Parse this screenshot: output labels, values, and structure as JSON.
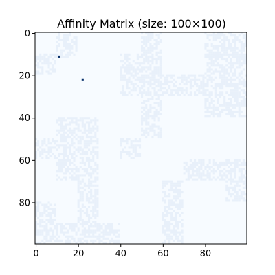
{
  "chart_data": {
    "type": "heatmap",
    "title": "Affinity Matrix (size: 100×100)",
    "xlabel": "",
    "ylabel": "",
    "rows": 100,
    "cols": 100,
    "xlim": [
      -0.5,
      99.5
    ],
    "ylim": [
      99.5,
      -0.5
    ],
    "x_ticks": [
      0,
      20,
      40,
      60,
      80
    ],
    "y_ticks": [
      0,
      20,
      40,
      60,
      80
    ],
    "colormap": "Blues",
    "value_range": [
      0,
      1
    ],
    "background_value": 0.0,
    "block_value": 0.06,
    "blocks": [
      {
        "rows": [
          0,
          11
        ],
        "cols": [
          10,
          19
        ]
      },
      {
        "rows": [
          0,
          11
        ],
        "cols": [
          50,
          59
        ]
      },
      {
        "rows": [
          0,
          11
        ],
        "cols": [
          80,
          99
        ]
      },
      {
        "rows": [
          10,
          19
        ],
        "cols": [
          0,
          9
        ]
      },
      {
        "rows": [
          10,
          19
        ],
        "cols": [
          40,
          59
        ]
      },
      {
        "rows": [
          10,
          19
        ],
        "cols": [
          80,
          99
        ]
      },
      {
        "rows": [
          20,
          29
        ],
        "cols": [
          40,
          99
        ]
      },
      {
        "rows": [
          30,
          39
        ],
        "cols": [
          50,
          59
        ]
      },
      {
        "rows": [
          30,
          39
        ],
        "cols": [
          80,
          99
        ]
      },
      {
        "rows": [
          40,
          49
        ],
        "cols": [
          10,
          29
        ]
      },
      {
        "rows": [
          40,
          49
        ],
        "cols": [
          50,
          59
        ]
      },
      {
        "rows": [
          50,
          59
        ],
        "cols": [
          0,
          29
        ]
      },
      {
        "rows": [
          50,
          59
        ],
        "cols": [
          40,
          49
        ]
      },
      {
        "rows": [
          60,
          69
        ],
        "cols": [
          10,
          29
        ]
      },
      {
        "rows": [
          60,
          69
        ],
        "cols": [
          70,
          99
        ]
      },
      {
        "rows": [
          70,
          79
        ],
        "cols": [
          20,
          29
        ]
      },
      {
        "rows": [
          70,
          79
        ],
        "cols": [
          60,
          69
        ]
      },
      {
        "rows": [
          70,
          79
        ],
        "cols": [
          90,
          99
        ]
      },
      {
        "rows": [
          80,
          89
        ],
        "cols": [
          0,
          9
        ]
      },
      {
        "rows": [
          80,
          89
        ],
        "cols": [
          20,
          29
        ]
      },
      {
        "rows": [
          80,
          89
        ],
        "cols": [
          60,
          69
        ]
      },
      {
        "rows": [
          90,
          99
        ],
        "cols": [
          0,
          39
        ]
      },
      {
        "rows": [
          90,
          99
        ],
        "cols": [
          60,
          69
        ]
      }
    ],
    "highlight_cells": [
      {
        "row": 11,
        "col": 11,
        "value": 1.0
      },
      {
        "row": 22,
        "col": 22,
        "value": 1.0
      }
    ],
    "colors": {
      "background": "#f7fbff",
      "block": "#e8f0fa",
      "highlight": "#08306b",
      "axis": "#000000"
    }
  }
}
